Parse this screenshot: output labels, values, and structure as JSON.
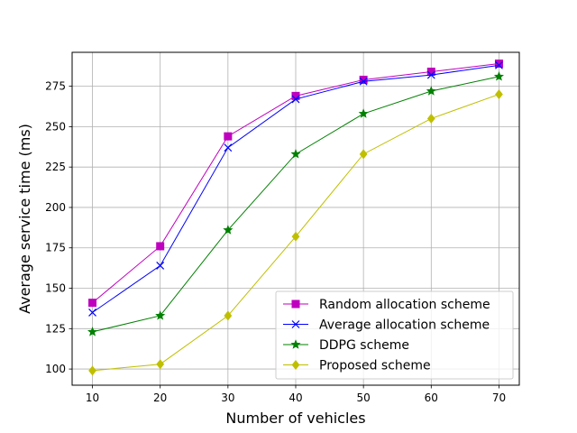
{
  "chart_data": {
    "type": "line",
    "title": "",
    "xlabel": "Number of vehicles",
    "ylabel": "Average service time (ms)",
    "x": [
      10,
      20,
      30,
      40,
      50,
      60,
      70
    ],
    "xlim": [
      7,
      73
    ],
    "ylim": [
      90,
      296
    ],
    "xticks": [
      10,
      20,
      30,
      40,
      50,
      60,
      70
    ],
    "yticks": [
      100,
      125,
      150,
      175,
      200,
      225,
      250,
      275
    ],
    "grid": true,
    "legend_position": "lower-right",
    "series": [
      {
        "name": "Random allocation scheme",
        "color": "#bf00bf",
        "marker": "square",
        "values": [
          141,
          176,
          244,
          269,
          279,
          284,
          289
        ]
      },
      {
        "name": "Average allocation scheme",
        "color": "#0000ff",
        "marker": "x",
        "values": [
          135,
          164,
          237,
          267,
          278,
          282,
          288
        ]
      },
      {
        "name": "DDPG scheme",
        "color": "#008000",
        "marker": "star",
        "values": [
          123,
          133,
          186,
          233,
          258,
          272,
          281
        ]
      },
      {
        "name": "Proposed scheme",
        "color": "#bfbf00",
        "marker": "diamond",
        "values": [
          99,
          103,
          133,
          182,
          233,
          255,
          270
        ]
      }
    ]
  }
}
